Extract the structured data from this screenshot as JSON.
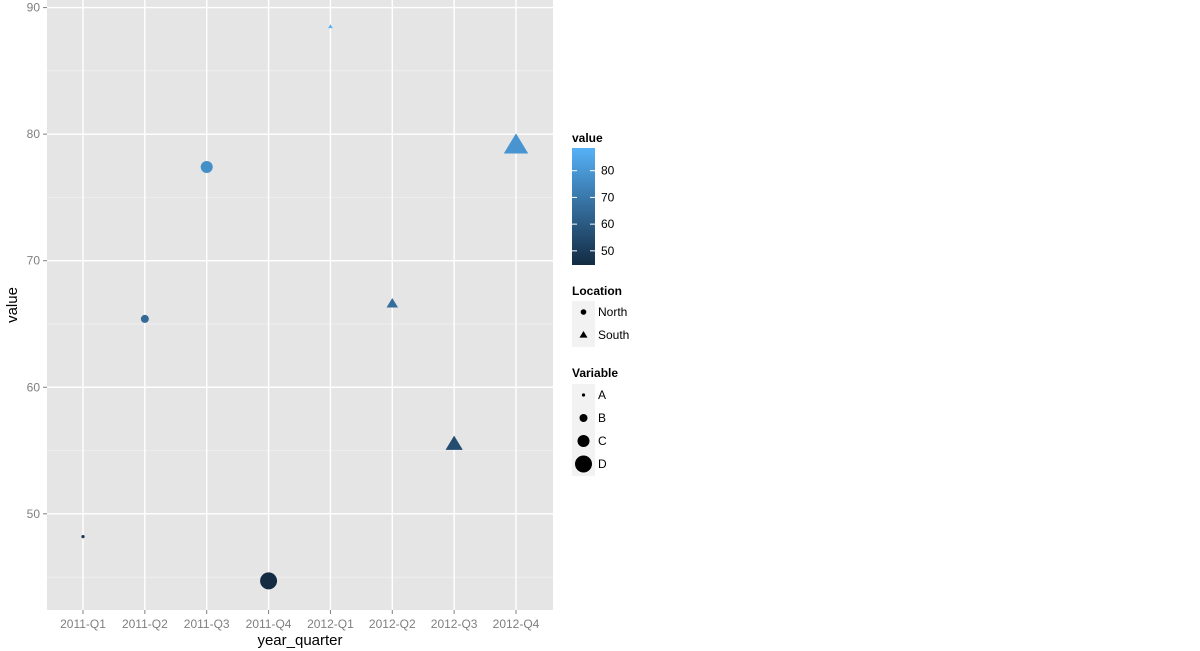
{
  "chart_data": {
    "type": "scatter",
    "xlabel": "year_quarter",
    "ylabel": "value",
    "categories": [
      "2011-Q1",
      "2011-Q2",
      "2011-Q3",
      "2011-Q4",
      "2012-Q1",
      "2012-Q2",
      "2012-Q3",
      "2012-Q4"
    ],
    "ylim": [
      42.4,
      90.6
    ],
    "yticks": [
      50,
      60,
      70,
      80,
      90
    ],
    "grid": true,
    "points": [
      {
        "x": "2011-Q1",
        "y": 48.2,
        "location": "North",
        "variable": "A"
      },
      {
        "x": "2011-Q2",
        "y": 65.4,
        "location": "North",
        "variable": "B"
      },
      {
        "x": "2011-Q3",
        "y": 77.4,
        "location": "North",
        "variable": "C"
      },
      {
        "x": "2011-Q4",
        "y": 44.7,
        "location": "North",
        "variable": "D"
      },
      {
        "x": "2012-Q1",
        "y": 88.5,
        "location": "South",
        "variable": "A"
      },
      {
        "x": "2012-Q2",
        "y": 66.6,
        "location": "South",
        "variable": "B"
      },
      {
        "x": "2012-Q3",
        "y": 55.5,
        "location": "South",
        "variable": "C"
      },
      {
        "x": "2012-Q4",
        "y": 79.1,
        "location": "South",
        "variable": "D"
      }
    ],
    "legend": {
      "placement": "right",
      "color": {
        "title": "value",
        "low_color": "#132B43",
        "high_color": "#56B1F7",
        "min": 44.7,
        "max": 88.5,
        "ticks": [
          50,
          60,
          70,
          80
        ]
      },
      "shape": {
        "title": "Location",
        "items": [
          {
            "label": "North",
            "shape": "circle"
          },
          {
            "label": "South",
            "shape": "triangle"
          }
        ]
      },
      "size": {
        "title": "Variable",
        "items": [
          "A",
          "B",
          "C",
          "D"
        ]
      }
    }
  }
}
